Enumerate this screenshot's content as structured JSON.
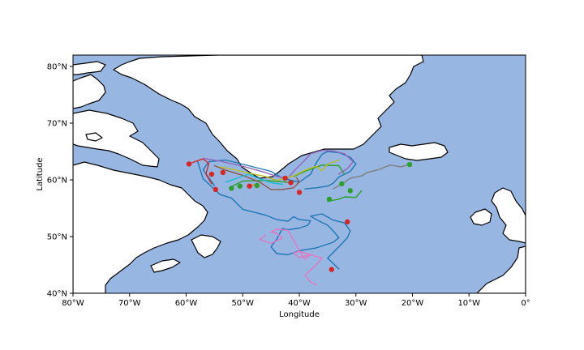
{
  "map": {
    "xlabel": "Longitude",
    "ylabel": "Latitude",
    "xlim": [
      -80,
      0
    ],
    "ylim": [
      40,
      82
    ],
    "x_ticks": [
      "80°W",
      "70°W",
      "60°W",
      "50°W",
      "40°W",
      "30°W",
      "20°W",
      "10°W",
      "0°"
    ],
    "y_ticks": [
      "40°N",
      "50°N",
      "60°N",
      "70°N",
      "80°N"
    ],
    "ocean_color": "#97b6e1",
    "land_color": "#ffffff",
    "coastline_color": "#000000"
  },
  "chart_data": {
    "type": "scatter",
    "xlabel": "Longitude",
    "ylabel": "Latitude",
    "xlim": [
      -80,
      0
    ],
    "ylim": [
      40,
      82
    ],
    "grid": false,
    "start_marker_color": "#2ca02c",
    "end_marker_color": "#d62728",
    "tracks": [
      {
        "color": "#1f77b4",
        "lon": [
          -55,
          -57,
          -56,
          -53,
          -49,
          -45,
          -43,
          -40,
          -38,
          -37,
          -36,
          -35,
          -33,
          -31,
          -30,
          -31,
          -33,
          -34,
          -35,
          -37,
          -39
        ],
        "lat": [
          59,
          61.8,
          63.2,
          63.5,
          62.5,
          61.5,
          60.3,
          59.6,
          61,
          63,
          64.5,
          65,
          64.8,
          64,
          62.8,
          61.5,
          60.5,
          59.4,
          58.9,
          58.6,
          58.4
        ]
      },
      {
        "color": "#1f77b4",
        "lon": [
          -58,
          -57,
          -54,
          -52,
          -50,
          -46,
          -44,
          -42,
          -41,
          -40,
          -38,
          -38.5,
          -40,
          -42,
          -43,
          -44,
          -45,
          -44,
          -42,
          -40,
          -37,
          -34,
          -33,
          -34,
          -35,
          -36,
          -37,
          -38,
          -36,
          -34,
          -32,
          -31,
          -31.5,
          -33,
          -35,
          -33
        ],
        "lat": [
          63.3,
          60.2,
          57.4,
          56.8,
          54.8,
          53.8,
          53,
          52.7,
          53.5,
          53,
          52.8,
          52,
          51.5,
          51.2,
          51.4,
          49.5,
          48.2,
          47,
          46.8,
          47.5,
          48,
          49,
          49.8,
          51,
          52,
          52.5,
          53,
          53.6,
          54,
          52.9,
          52.4,
          51,
          49.8,
          48.2,
          46.2,
          44.3
        ]
      },
      {
        "color": "#2ca02c",
        "lon": [
          -52,
          -50,
          -46,
          -41
        ],
        "lat": [
          58.8,
          59.8,
          59.9,
          59.5
        ]
      },
      {
        "color": "#2ca02c",
        "lon": [
          -35,
          -33,
          -32,
          -30,
          -29
        ],
        "lat": [
          56.2,
          56.6,
          57,
          56.9,
          58.1
        ]
      },
      {
        "color": "#2ca02c",
        "lon": [
          -41,
          -39,
          -36,
          -33,
          -32
        ],
        "lat": [
          60.6,
          61.5,
          62.6,
          62.5,
          61
        ]
      },
      {
        "color": "#d62728",
        "lon": [
          -59.5,
          -58.5,
          -57,
          -56,
          -56.5,
          -55.5
        ],
        "lat": [
          62.8,
          63.2,
          63.7,
          62.9,
          61,
          59.3
        ]
      },
      {
        "color": "#9467bd",
        "lon": [
          -57,
          -54,
          -50,
          -46,
          -44,
          -42,
          -41,
          -39,
          -38,
          -36,
          -34,
          -32,
          -30.5,
          -31.5,
          -33
        ],
        "lat": [
          63.8,
          63.3,
          62.4,
          61.3,
          60.6,
          60.3,
          61.5,
          63.5,
          64.6,
          65.2,
          65.1,
          64.6,
          63.2,
          62,
          61
        ]
      },
      {
        "color": "#8c564b",
        "lon": [
          -55,
          -53,
          -50,
          -47,
          -45,
          -43,
          -41,
          -40,
          -40.5
        ],
        "lat": [
          62.5,
          61.7,
          60.8,
          59.6,
          58.3,
          58.3,
          58.6,
          59.6,
          60.4
        ]
      },
      {
        "color": "#e377c2",
        "lon": [
          -46,
          -47,
          -45,
          -43,
          -44,
          -45,
          -44,
          -42,
          -41,
          -40,
          -39,
          -38,
          -40,
          -41,
          -40,
          -38,
          -36,
          -37,
          -38,
          -39,
          -38,
          -37
        ],
        "lat": [
          50.2,
          49.5,
          48.8,
          49.7,
          50.6,
          50.8,
          51.3,
          51.1,
          49.4,
          47.5,
          46,
          46.8,
          47.4,
          47.1,
          46.3,
          46.8,
          46.2,
          45,
          44.1,
          43.2,
          42,
          41.5
        ]
      },
      {
        "color": "#7f7f7f",
        "lon": [
          -34,
          -32,
          -31,
          -29,
          -28,
          -26,
          -24,
          -22,
          -21
        ],
        "lat": [
          58.4,
          59.6,
          60.3,
          60.7,
          61.3,
          61.8,
          62.6,
          62.3,
          62.6
        ]
      },
      {
        "color": "#bcbd22",
        "lon": [
          -54,
          -52,
          -49,
          -46,
          -44,
          -41,
          -39,
          -37,
          -36,
          -35,
          -33
        ],
        "lat": [
          62.3,
          61.9,
          61.2,
          60.6,
          59.9,
          60.7,
          61.7,
          62.4,
          61.6,
          62.8,
          63.5
        ]
      },
      {
        "color": "#17becf",
        "lon": [
          -53,
          -51,
          -49,
          -47,
          -45,
          -43
        ],
        "lat": [
          59.6,
          60.3,
          61,
          60.2,
          59.5,
          59.2
        ]
      },
      {
        "color": "#ff7f0e",
        "lon": [
          -49,
          -48,
          -47
        ],
        "lat": [
          58.7,
          59.2,
          58.9
        ]
      }
    ],
    "start_points": [
      {
        "lon": -20.5,
        "lat": 62.7
      },
      {
        "lon": -31,
        "lat": 58.1
      },
      {
        "lon": -32.5,
        "lat": 59.3
      },
      {
        "lon": -34.7,
        "lat": 56.6
      },
      {
        "lon": -50.5,
        "lat": 58.9
      },
      {
        "lon": -52,
        "lat": 58.5
      },
      {
        "lon": -47.5,
        "lat": 59
      }
    ],
    "end_points": [
      {
        "lon": -59.5,
        "lat": 62.8
      },
      {
        "lon": -55.5,
        "lat": 61
      },
      {
        "lon": -54.8,
        "lat": 58.3
      },
      {
        "lon": -53.5,
        "lat": 61.3
      },
      {
        "lon": -48.8,
        "lat": 58.9
      },
      {
        "lon": -42.5,
        "lat": 60.3
      },
      {
        "lon": -41.5,
        "lat": 59.5
      },
      {
        "lon": -40,
        "lat": 57.8
      },
      {
        "lon": -31.5,
        "lat": 52.6
      },
      {
        "lon": -34.3,
        "lat": 44.2
      }
    ]
  }
}
